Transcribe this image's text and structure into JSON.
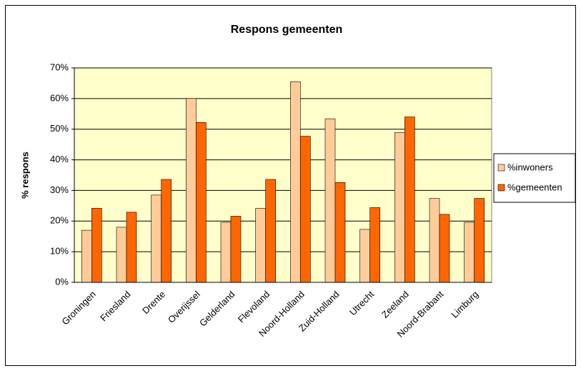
{
  "chart_data": {
    "type": "bar",
    "title": "Respons gemeenten",
    "y_label": "% respons",
    "categories": [
      "Groningen",
      "Friesland",
      "Drente",
      "Overijssel",
      "Gelderland",
      "Flevoland",
      "Noord-Holland",
      "Zuid-Holland",
      "Utrecht",
      "Zeeland",
      "Noord-Brabant",
      "Limburg"
    ],
    "series": [
      {
        "name": "%inwoners",
        "color": "#ffcc99",
        "values": [
          17,
          18,
          28.5,
          60,
          19.6,
          24.2,
          65.5,
          53.4,
          17.3,
          48.9,
          27.4,
          19.6
        ]
      },
      {
        "name": "%gemeenten",
        "color": "#ff6600",
        "values": [
          24.2,
          22.9,
          33.6,
          52.2,
          21.6,
          33.6,
          47.7,
          32.6,
          24.4,
          54,
          22.2,
          27.4
        ]
      }
    ],
    "ylim": [
      0,
      70
    ],
    "yticks": [
      {
        "value": 0,
        "label": "0%"
      },
      {
        "value": 10,
        "label": "10%"
      },
      {
        "value": 20,
        "label": "20%"
      },
      {
        "value": 30,
        "label": "30%"
      },
      {
        "value": 40,
        "label": "40%"
      },
      {
        "value": 50,
        "label": "50%"
      },
      {
        "value": 60,
        "label": "60%"
      },
      {
        "value": 70,
        "label": "70%"
      }
    ],
    "grid": true,
    "legend": "right",
    "plot_background": "#ffffcc"
  }
}
